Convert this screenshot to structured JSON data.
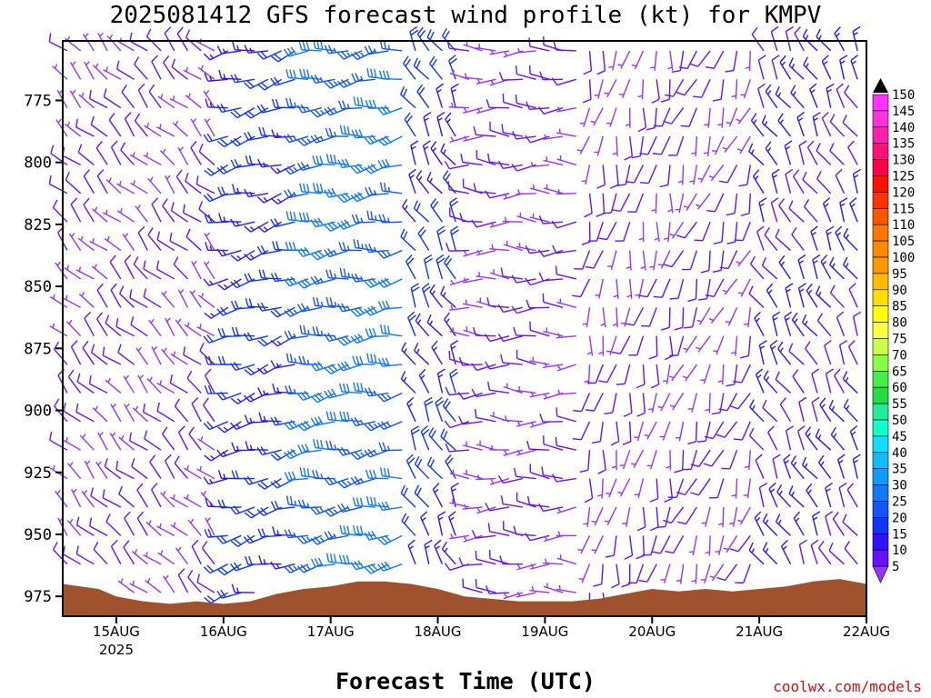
{
  "title": "2025081412 GFS forecast wind profile (kt) for KMPV",
  "x_axis_label": "Forecast Time (UTC)",
  "credit": "coolwx.com/models",
  "colors": {
    "terrain": "#a0522d",
    "frame": "#000000"
  },
  "chart_data": {
    "type": "wind-barb time-height cross section",
    "y_axis": {
      "unit": "hPa",
      "ticks": [
        775,
        800,
        825,
        850,
        875,
        900,
        925,
        950,
        975
      ],
      "range_top": 751,
      "range_bottom": 983,
      "inverted": true
    },
    "x_axis": {
      "start_hour": 12,
      "ticks": [
        {
          "label": "15AUG",
          "sub": "2025",
          "hour": 24
        },
        {
          "label": "16AUG",
          "sub": "",
          "hour": 48
        },
        {
          "label": "17AUG",
          "sub": "",
          "hour": 72
        },
        {
          "label": "18AUG",
          "sub": "",
          "hour": 96
        },
        {
          "label": "19AUG",
          "sub": "",
          "hour": 120
        },
        {
          "label": "20AUG",
          "sub": "",
          "hour": 144
        },
        {
          "label": "21AUG",
          "sub": "",
          "hour": 168
        },
        {
          "label": "22AUG",
          "sub": "",
          "hour": 192
        }
      ]
    },
    "colorbar": {
      "labels": [
        150,
        145,
        140,
        135,
        130,
        125,
        120,
        115,
        110,
        105,
        100,
        95,
        90,
        85,
        80,
        75,
        70,
        65,
        60,
        55,
        50,
        45,
        40,
        35,
        30,
        25,
        20,
        15,
        10,
        5
      ],
      "colors": [
        "#ff33ff",
        "#ff33dd",
        "#ff22aa",
        "#ff1177",
        "#ff0044",
        "#ff1100",
        "#ff3300",
        "#ff5500",
        "#ff7700",
        "#ff8800",
        "#ff9900",
        "#ffbb00",
        "#ffdd00",
        "#ffff00",
        "#ffff44",
        "#ccff44",
        "#88ff44",
        "#44ee44",
        "#22dd44",
        "#22ee99",
        "#11ffcc",
        "#11ddff",
        "#11bbff",
        "#1199ff",
        "#1177ff",
        "#1155ff",
        "#1133ff",
        "#3311ff",
        "#6611ff",
        "#9933ff"
      ]
    },
    "surface_pressure": [
      {
        "hour": 12,
        "p": 970
      },
      {
        "hour": 20,
        "p": 972
      },
      {
        "hour": 24,
        "p": 975
      },
      {
        "hour": 30,
        "p": 977
      },
      {
        "hour": 36,
        "p": 978
      },
      {
        "hour": 42,
        "p": 977
      },
      {
        "hour": 48,
        "p": 978
      },
      {
        "hour": 54,
        "p": 977
      },
      {
        "hour": 60,
        "p": 974
      },
      {
        "hour": 66,
        "p": 972
      },
      {
        "hour": 72,
        "p": 971
      },
      {
        "hour": 78,
        "p": 969
      },
      {
        "hour": 84,
        "p": 969
      },
      {
        "hour": 90,
        "p": 970
      },
      {
        "hour": 96,
        "p": 972
      },
      {
        "hour": 102,
        "p": 975
      },
      {
        "hour": 108,
        "p": 976
      },
      {
        "hour": 114,
        "p": 977
      },
      {
        "hour": 120,
        "p": 977
      },
      {
        "hour": 126,
        "p": 977
      },
      {
        "hour": 132,
        "p": 976
      },
      {
        "hour": 138,
        "p": 974
      },
      {
        "hour": 144,
        "p": 972
      },
      {
        "hour": 150,
        "p": 973
      },
      {
        "hour": 156,
        "p": 972
      },
      {
        "hour": 162,
        "p": 973
      },
      {
        "hour": 168,
        "p": 972
      },
      {
        "hour": 174,
        "p": 971
      },
      {
        "hour": 180,
        "p": 969
      },
      {
        "hour": 186,
        "p": 968
      },
      {
        "hour": 192,
        "p": 970
      }
    ],
    "wind_regimes": [
      {
        "hours": [
          12,
          46
        ],
        "dir_deg": 315,
        "speed_kt": 10
      },
      {
        "hours": [
          47,
          66
        ],
        "dir_deg": 255,
        "speed_kt": 20
      },
      {
        "hours": [
          67,
          88
        ],
        "dir_deg": 260,
        "speed_kt": 30
      },
      {
        "hours": [
          89,
          102
        ],
        "dir_deg": 330,
        "speed_kt": 20
      },
      {
        "hours": [
          103,
          128
        ],
        "dir_deg": 270,
        "speed_kt": 10
      },
      {
        "hours": [
          129,
          150
        ],
        "dir_deg": 190,
        "speed_kt": 10
      },
      {
        "hours": [
          151,
          168
        ],
        "dir_deg": 200,
        "speed_kt": 10
      },
      {
        "hours": [
          169,
          192
        ],
        "dir_deg": 330,
        "speed_kt": 15
      }
    ]
  }
}
